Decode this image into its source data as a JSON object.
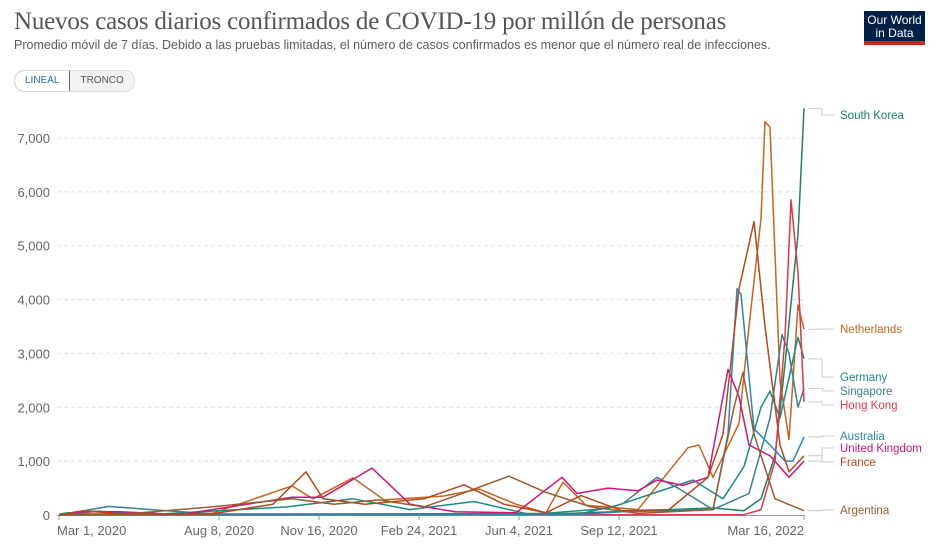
{
  "header": {
    "title": "Nuevos casos diarios confirmados de COVID-19 por millón de personas",
    "subtitle": "Promedio móvil de 7 días. Debido a las pruebas limitadas, el número de casos confirmados es menor que el número real de infecciones.",
    "logo_text": "Our World in Data"
  },
  "controls": {
    "linear_label": "LINEAL",
    "log_label": "TRONCO",
    "selected": "LINEAL"
  },
  "chart_data": {
    "type": "line",
    "title": "Nuevos casos diarios confirmados de COVID-19 por millón de personas",
    "xlabel": "",
    "ylabel": "",
    "xlim": [
      "2020-03-01",
      "2022-03-16"
    ],
    "ylim": [
      0,
      7600
    ],
    "grid": true,
    "legend": "right (line-end labels)",
    "y_ticks": [
      "0",
      "1,000",
      "2,000",
      "3,000",
      "4,000",
      "5,000",
      "6,000",
      "7,000"
    ],
    "y_tick_values": [
      0,
      1000,
      2000,
      3000,
      4000,
      5000,
      6000,
      7000
    ],
    "x_ticks": [
      "Mar 1, 2020",
      "Aug 8, 2020",
      "Nov 16, 2020",
      "Feb 24, 2021",
      "Jun 4, 2021",
      "Sep 12, 2021",
      "Mar 16, 2022"
    ],
    "x_tick_dates": [
      "2020-03-01",
      "2020-08-08",
      "2020-11-16",
      "2021-02-24",
      "2021-06-04",
      "2021-09-12",
      "2022-03-16"
    ],
    "series": [
      {
        "name": "South Korea",
        "color": "#18845a",
        "points": [
          [
            "2020-03-01",
            15
          ],
          [
            "2020-03-10",
            40
          ],
          [
            "2020-04-01",
            5
          ],
          [
            "2020-12-25",
            20
          ],
          [
            "2021-07-25",
            30
          ],
          [
            "2021-12-15",
            130
          ],
          [
            "2022-01-15",
            80
          ],
          [
            "2022-02-01",
            300
          ],
          [
            "2022-02-15",
            1100
          ],
          [
            "2022-02-25",
            2800
          ],
          [
            "2022-03-05",
            4300
          ],
          [
            "2022-03-10",
            5200
          ],
          [
            "2022-03-16",
            7550
          ]
        ]
      },
      {
        "name": "Netherlands",
        "color": "#c8641c",
        "points": [
          [
            "2020-03-01",
            0
          ],
          [
            "2020-04-10",
            70
          ],
          [
            "2020-06-01",
            10
          ],
          [
            "2020-08-01",
            30
          ],
          [
            "2020-10-20",
            540
          ],
          [
            "2020-11-10",
            300
          ],
          [
            "2020-12-20",
            690
          ],
          [
            "2021-01-20",
            280
          ],
          [
            "2021-03-20",
            350
          ],
          [
            "2021-04-25",
            480
          ],
          [
            "2021-06-01",
            200
          ],
          [
            "2021-07-01",
            40
          ],
          [
            "2021-07-18",
            610
          ],
          [
            "2021-08-10",
            180
          ],
          [
            "2021-10-01",
            100
          ],
          [
            "2021-11-20",
            1250
          ],
          [
            "2021-12-01",
            1300
          ],
          [
            "2021-12-15",
            700
          ],
          [
            "2022-01-10",
            1700
          ],
          [
            "2022-01-20",
            3500
          ],
          [
            "2022-02-01",
            5500
          ],
          [
            "2022-02-05",
            7300
          ],
          [
            "2022-02-10",
            7200
          ],
          [
            "2022-02-20",
            2500
          ],
          [
            "2022-03-01",
            1400
          ],
          [
            "2022-03-10",
            3900
          ],
          [
            "2022-03-16",
            3450
          ]
        ]
      },
      {
        "name": "Germany",
        "color": "#1a8c7e",
        "points": [
          [
            "2020-03-01",
            0
          ],
          [
            "2020-04-05",
            70
          ],
          [
            "2020-06-01",
            10
          ],
          [
            "2020-10-15",
            150
          ],
          [
            "2020-12-20",
            300
          ],
          [
            "2021-02-15",
            100
          ],
          [
            "2021-04-20",
            250
          ],
          [
            "2021-06-15",
            10
          ],
          [
            "2021-09-01",
            120
          ],
          [
            "2021-11-25",
            650
          ],
          [
            "2021-12-25",
            300
          ],
          [
            "2022-01-15",
            900
          ],
          [
            "2022-02-01",
            2000
          ],
          [
            "2022-02-10",
            2300
          ],
          [
            "2022-02-20",
            1800
          ],
          [
            "2022-03-10",
            3300
          ],
          [
            "2022-03-16",
            2900
          ]
        ]
      },
      {
        "name": "Singapore",
        "color": "#3a7f91",
        "points": [
          [
            "2020-03-01",
            0
          ],
          [
            "2020-04-20",
            160
          ],
          [
            "2020-06-01",
            100
          ],
          [
            "2020-08-01",
            20
          ],
          [
            "2021-08-01",
            10
          ],
          [
            "2021-09-15",
            200
          ],
          [
            "2021-10-20",
            700
          ],
          [
            "2021-11-10",
            500
          ],
          [
            "2021-12-15",
            100
          ],
          [
            "2022-01-20",
            400
          ],
          [
            "2022-02-10",
            1800
          ],
          [
            "2022-02-22",
            3350
          ],
          [
            "2022-03-01",
            3000
          ],
          [
            "2022-03-10",
            2000
          ],
          [
            "2022-03-16",
            2350
          ]
        ]
      },
      {
        "name": "Hong Kong",
        "color": "#e0364b",
        "points": [
          [
            "2020-03-01",
            0
          ],
          [
            "2022-01-15",
            5
          ],
          [
            "2022-02-01",
            100
          ],
          [
            "2022-02-15",
            1000
          ],
          [
            "2022-02-25",
            3300
          ],
          [
            "2022-03-03",
            5850
          ],
          [
            "2022-03-10",
            4500
          ],
          [
            "2022-03-16",
            2100
          ]
        ]
      },
      {
        "name": "Australia",
        "color": "#2a86b8",
        "points": [
          [
            "2020-03-01",
            0
          ],
          [
            "2020-03-28",
            20
          ],
          [
            "2021-08-01",
            10
          ],
          [
            "2021-09-15",
            60
          ],
          [
            "2021-12-15",
            100
          ],
          [
            "2021-12-30",
            1500
          ],
          [
            "2022-01-08",
            4200
          ],
          [
            "2022-01-12",
            4100
          ],
          [
            "2022-01-25",
            1600
          ],
          [
            "2022-02-10",
            1300
          ],
          [
            "2022-02-25",
            1000
          ],
          [
            "2022-03-05",
            1000
          ],
          [
            "2022-03-16",
            1450
          ]
        ]
      },
      {
        "name": "United Kingdom",
        "color": "#cf147e",
        "points": [
          [
            "2020-03-01",
            0
          ],
          [
            "2020-03-25",
            60
          ],
          [
            "2020-05-01",
            60
          ],
          [
            "2020-07-01",
            10
          ],
          [
            "2020-10-20",
            330
          ],
          [
            "2020-11-20",
            330
          ],
          [
            "2021-01-08",
            870
          ],
          [
            "2021-02-15",
            200
          ],
          [
            "2021-04-01",
            60
          ],
          [
            "2021-06-01",
            40
          ],
          [
            "2021-07-17",
            700
          ],
          [
            "2021-08-01",
            400
          ],
          [
            "2021-09-01",
            500
          ],
          [
            "2021-10-01",
            450
          ],
          [
            "2021-10-20",
            650
          ],
          [
            "2021-11-15",
            550
          ],
          [
            "2021-12-10",
            700
          ],
          [
            "2021-12-30",
            2700
          ],
          [
            "2022-01-10",
            2200
          ],
          [
            "2022-01-20",
            1300
          ],
          [
            "2022-02-10",
            1100
          ],
          [
            "2022-03-01",
            700
          ],
          [
            "2022-03-16",
            1000
          ]
        ]
      },
      {
        "name": "France",
        "color": "#b8461a",
        "points": [
          [
            "2020-03-01",
            0
          ],
          [
            "2020-03-25",
            80
          ],
          [
            "2020-05-01",
            20
          ],
          [
            "2020-08-01",
            20
          ],
          [
            "2020-10-01",
            200
          ],
          [
            "2020-11-03",
            800
          ],
          [
            "2020-11-20",
            300
          ],
          [
            "2021-01-01",
            200
          ],
          [
            "2021-03-01",
            300
          ],
          [
            "2021-04-10",
            560
          ],
          [
            "2021-05-20",
            200
          ],
          [
            "2021-07-01",
            40
          ],
          [
            "2021-08-05",
            360
          ],
          [
            "2021-09-15",
            80
          ],
          [
            "2021-11-01",
            100
          ],
          [
            "2021-12-10",
            700
          ],
          [
            "2021-12-25",
            1500
          ],
          [
            "2022-01-10",
            4200
          ],
          [
            "2022-01-25",
            5450
          ],
          [
            "2022-02-05",
            3500
          ],
          [
            "2022-02-20",
            1300
          ],
          [
            "2022-03-01",
            800
          ],
          [
            "2022-03-16",
            1100
          ]
        ]
      },
      {
        "name": "Argentina",
        "color": "#9a5a2c",
        "points": [
          [
            "2020-03-01",
            0
          ],
          [
            "2020-05-01",
            10
          ],
          [
            "2020-08-01",
            150
          ],
          [
            "2020-10-20",
            300
          ],
          [
            "2020-12-01",
            200
          ],
          [
            "2021-01-15",
            280
          ],
          [
            "2021-03-01",
            150
          ],
          [
            "2021-04-01",
            350
          ],
          [
            "2021-05-25",
            720
          ],
          [
            "2021-07-01",
            420
          ],
          [
            "2021-08-15",
            150
          ],
          [
            "2021-10-01",
            30
          ],
          [
            "2021-12-15",
            100
          ],
          [
            "2022-01-05",
            2000
          ],
          [
            "2022-01-14",
            2650
          ],
          [
            "2022-01-25",
            1500
          ],
          [
            "2022-02-15",
            300
          ],
          [
            "2022-03-16",
            80
          ]
        ]
      }
    ]
  }
}
